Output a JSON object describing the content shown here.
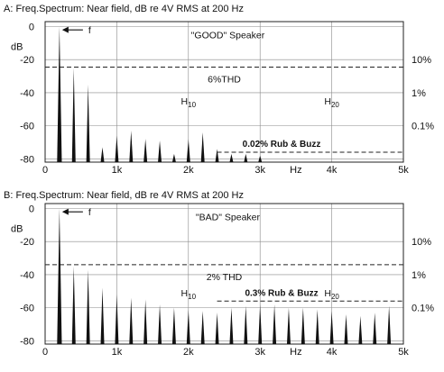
{
  "chart_data": [
    {
      "type": "bar",
      "title": "A: Freq.Spectrum: Near field, dB re 4V RMS at 200 Hz",
      "speaker_label": "\"GOOD\" Speaker",
      "ylabel": "dB",
      "xlabel": "Hz",
      "xlim": [
        0,
        5000
      ],
      "ylim": [
        -82,
        3
      ],
      "y_ticks": [
        0,
        -20,
        -40,
        -60,
        -80
      ],
      "x_ticks": [
        {
          "v": 0,
          "label": "0"
        },
        {
          "v": 1000,
          "label": "1k"
        },
        {
          "v": 2000,
          "label": "2k"
        },
        {
          "v": 3000,
          "label": "3k"
        },
        {
          "v": 4000,
          "label": "4k"
        },
        {
          "v": 5000,
          "label": "5k"
        }
      ],
      "hz_label_at": 3500,
      "grid": true,
      "right_axis": [
        {
          "label": "10%",
          "db": -20
        },
        {
          "label": "1%",
          "db": -40
        },
        {
          "label": "0.1%",
          "db": -60
        }
      ],
      "fundamental": {
        "label": "f",
        "hz": 200
      },
      "thd": {
        "label": "6%THD",
        "db": -24.5,
        "x_start": 0,
        "x_end": 5000
      },
      "rub_buzz": {
        "label": "0.02% Rub & Buzz",
        "db": -76,
        "x_start": 2400,
        "x_end": 5000
      },
      "harmonic_labels": [
        {
          "base": "H",
          "sub": "10",
          "hz": 2000
        },
        {
          "base": "H",
          "sub": "20",
          "hz": 4000
        }
      ],
      "spikes_hz": [
        200,
        400,
        600,
        800,
        1000,
        1200,
        1400,
        1600,
        1800,
        2000,
        2200,
        2400,
        2600,
        2800,
        3000
      ],
      "spikes_db": [
        0,
        -25,
        -35,
        -73,
        -66,
        -63,
        -68,
        -69,
        -77,
        -68,
        -64,
        -74,
        -77,
        -77,
        -78
      ]
    },
    {
      "type": "bar",
      "title": "B: Freq.Spectrum: Near field, dB re 4V RMS at 200 Hz",
      "speaker_label": "\"BAD\" Speaker",
      "ylabel": "dB",
      "xlabel": "Hz",
      "xlim": [
        0,
        5000
      ],
      "ylim": [
        -82,
        3
      ],
      "y_ticks": [
        0,
        -20,
        -40,
        -60,
        -80
      ],
      "x_ticks": [
        {
          "v": 0,
          "label": "0"
        },
        {
          "v": 1000,
          "label": "1k"
        },
        {
          "v": 2000,
          "label": "2k"
        },
        {
          "v": 3000,
          "label": "3k"
        },
        {
          "v": 4000,
          "label": "4k"
        },
        {
          "v": 5000,
          "label": "5k"
        }
      ],
      "hz_label_at": 3500,
      "grid": true,
      "right_axis": [
        {
          "label": "10%",
          "db": -20
        },
        {
          "label": "1%",
          "db": -40
        },
        {
          "label": "0.1%",
          "db": -60
        }
      ],
      "fundamental": {
        "label": "f",
        "hz": 200
      },
      "thd": {
        "label": "2% THD",
        "db": -34,
        "x_start": 0,
        "x_end": 5000
      },
      "rub_buzz": {
        "label": "0.3% Rub & Buzz",
        "db": -56,
        "x_start": 2400,
        "x_end": 5000
      },
      "harmonic_labels": [
        {
          "base": "H",
          "sub": "10",
          "hz": 2000
        },
        {
          "base": "H",
          "sub": "20",
          "hz": 4000
        }
      ],
      "spikes_hz": [
        200,
        400,
        600,
        800,
        1000,
        1200,
        1400,
        1600,
        1800,
        2000,
        2200,
        2400,
        2600,
        2800,
        3000,
        3200,
        3400,
        3600,
        3800,
        4000,
        4200,
        4400,
        4600,
        4800
      ],
      "spikes_db": [
        0,
        -35,
        -37,
        -48,
        -52,
        -54,
        -55,
        -58,
        -60,
        -61,
        -62,
        -63,
        -60,
        -59,
        -58,
        -58,
        -60,
        -60,
        -61,
        -62,
        -64,
        -65,
        -63,
        -59
      ]
    }
  ]
}
